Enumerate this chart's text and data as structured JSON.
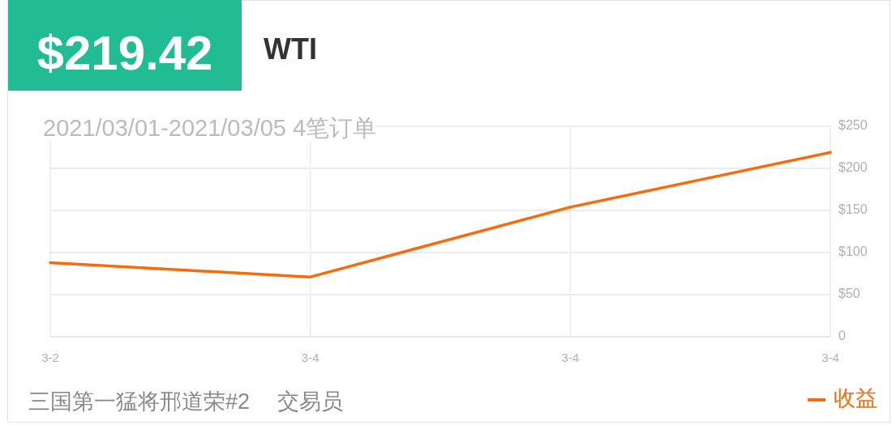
{
  "chart_data": {
    "type": "line",
    "title": "WTI",
    "subtitle": "2021/03/01-2021/03/05 4笔订单",
    "annotations": [
      "$219.42",
      "三国第一猛将邢道荣#2",
      "交易员"
    ],
    "categories": [
      "3-2",
      "3-4",
      "3-4",
      "3-4"
    ],
    "series": [
      {
        "name": "收益",
        "color": "#fa6a0a",
        "values": [
          88,
          71,
          154,
          219
        ]
      }
    ],
    "ylim": [
      0,
      250
    ],
    "yticks": [
      0,
      {
        "value": 50,
        "label": "$50"
      },
      {
        "value": 100,
        "label": "$100"
      },
      {
        "value": 150,
        "label": "$150"
      },
      {
        "value": 200,
        "label": "$200"
      },
      {
        "value": 250,
        "label": "$250"
      }
    ],
    "grid": true,
    "legend": "bottom right"
  }
}
